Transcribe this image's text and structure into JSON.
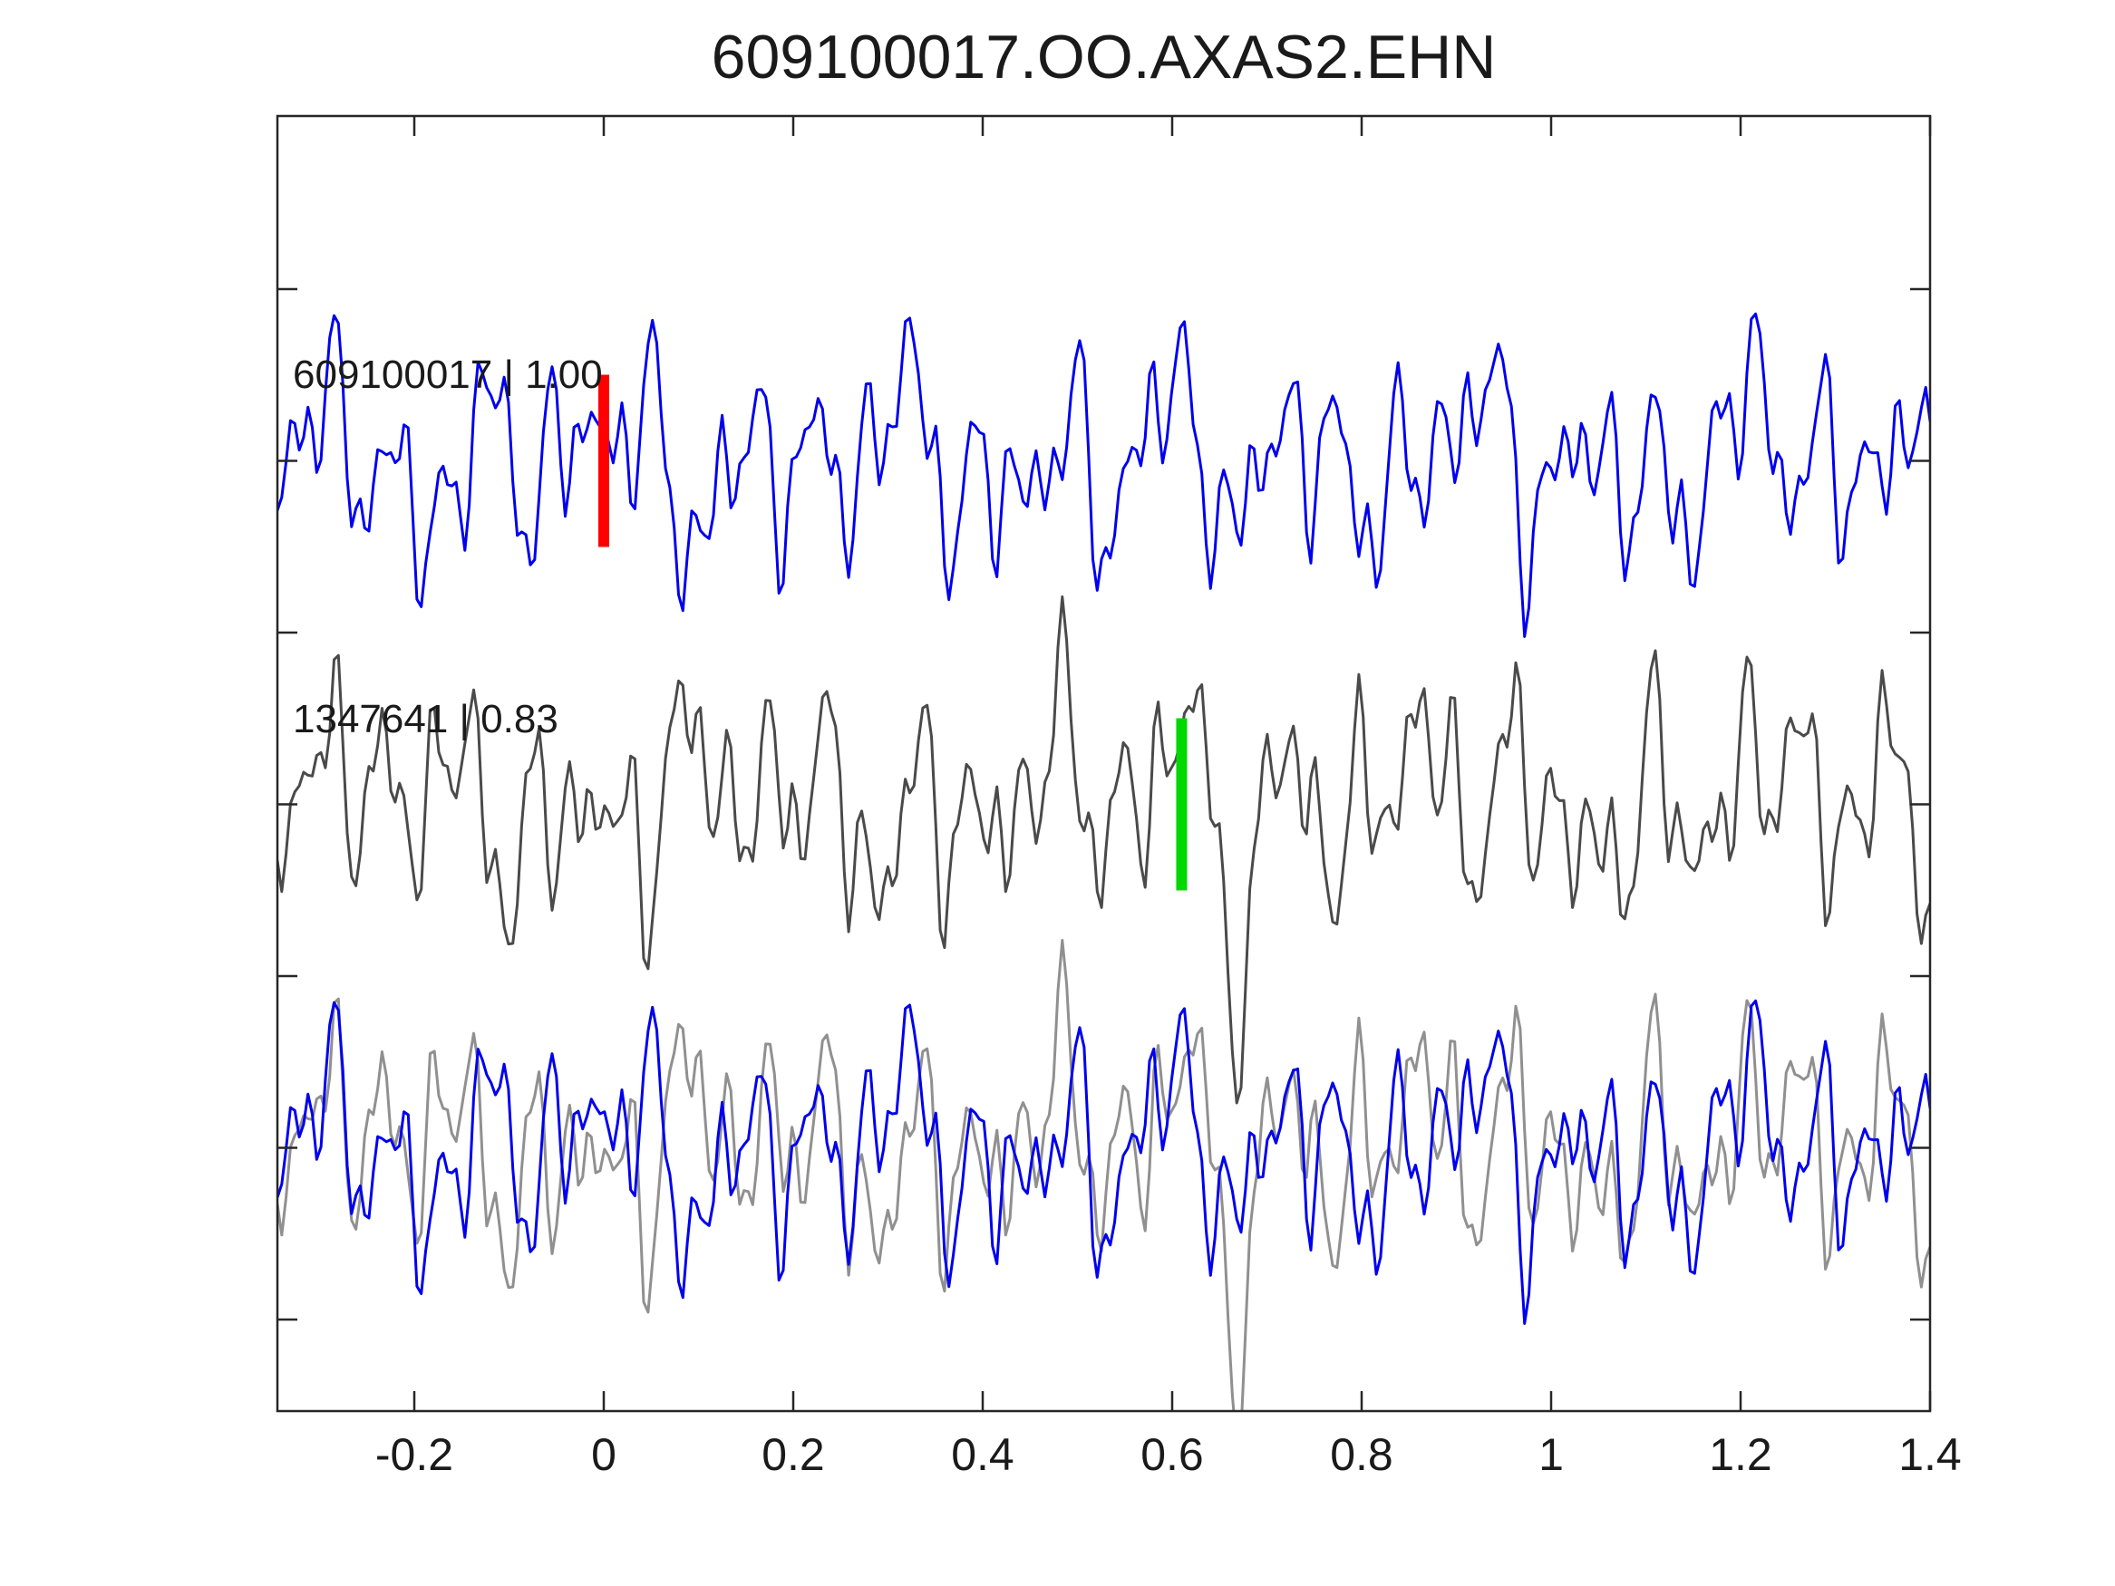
{
  "title": "609100017.OO.AXAS2.EHN",
  "chart_data": {
    "type": "line",
    "title": "609100017.OO.AXAS2.EHN",
    "xlabel": "",
    "ylabel": "",
    "xlim": [
      -0.3445,
      1.4
    ],
    "x_tick_values": [
      -0.2,
      0,
      0.2,
      0.4,
      0.6,
      0.8,
      1,
      1.2,
      1.4
    ],
    "x_tick_labels": [
      "-0.2",
      "0",
      "0.2",
      "0.4",
      "0.6",
      "0.8",
      "1",
      "1.2",
      "1.4"
    ],
    "y_tick_count": 7,
    "y_tick_labels": [],
    "grid": false,
    "legend": "none",
    "background": "#ffffff",
    "axis_color": "#262626",
    "text_color": "#1a1a1a",
    "tick_direction": "in",
    "box": true,
    "n_samples": 380,
    "series": [
      {
        "id": "template-609100017",
        "label": "609100017 | 1.00",
        "name": "609100017",
        "correlation": "1.00",
        "color": "#0000ee",
        "row": 0,
        "pick": {
          "time": 0.0,
          "color": "#ff0000"
        },
        "waveform_synthesis": {
          "note": "approximation of band-passed seismic noise trace",
          "components": [
            {
              "f": 3.17,
              "a": 28,
              "p": 2.1
            },
            {
              "f": 6.73,
              "a": 38,
              "p": 0.7
            },
            {
              "f": 11.31,
              "a": 48,
              "p": 4.2
            },
            {
              "f": 17.93,
              "a": 52,
              "p": 1.8
            },
            {
              "f": 26.71,
              "a": 40,
              "p": 5.1
            },
            {
              "f": 39.37,
              "a": 30,
              "p": 2.7
            },
            {
              "f": 57.31,
              "a": 18,
              "p": 0.4
            }
          ],
          "wavelets": [
            {
              "c": 0.685,
              "w": 0.055,
              "a": 150,
              "f": 9.2,
              "p": 0
            }
          ]
        }
      },
      {
        "id": "detection-1347641",
        "label": "1347641 | 0.83",
        "name": "1347641",
        "correlation": "0.83",
        "color": "#4a4a4a",
        "row": 1,
        "pick": {
          "time": 0.61,
          "color": "#00d800"
        },
        "waveform_synthesis": {
          "note": "approximation of band-passed seismic noise trace",
          "components": [
            {
              "f": 2.69,
              "a": 30,
              "p": 5.6
            },
            {
              "f": 7.91,
              "a": 42,
              "p": 3.2
            },
            {
              "f": 12.67,
              "a": 50,
              "p": 0.9
            },
            {
              "f": 19.41,
              "a": 55,
              "p": 4.8
            },
            {
              "f": 28.87,
              "a": 42,
              "p": 2.3
            },
            {
              "f": 41.73,
              "a": 30,
              "p": 5.8
            },
            {
              "f": 60.13,
              "a": 16,
              "p": 1.5
            }
          ],
          "wavelets": [
            {
              "c": 0.64,
              "w": 0.055,
              "a": -160,
              "f": 10.1,
              "p": 0
            }
          ]
        }
      },
      {
        "id": "overlay-detection-1347641",
        "label": "",
        "color": "#909090",
        "row": 2,
        "waveform_synthesis": "detection-1347641"
      },
      {
        "id": "overlay-template-609100017",
        "label": "",
        "color": "#0000ee",
        "row": 2,
        "waveform_synthesis": "template-609100017"
      }
    ]
  }
}
